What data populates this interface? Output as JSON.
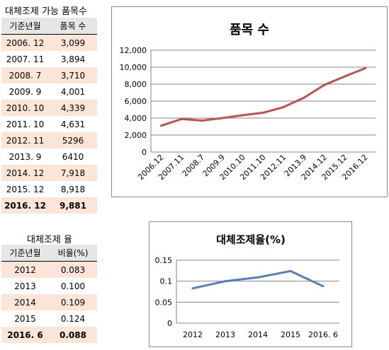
{
  "table1": {
    "title": "대체조제 가능 품목수",
    "headers": [
      "기준년월",
      "품목 수"
    ],
    "rows": [
      [
        "2006. 12",
        "3,099"
      ],
      [
        "2007. 11",
        "3,894"
      ],
      [
        "2008. 7",
        "3,710"
      ],
      [
        "2009. 9",
        "4,001"
      ],
      [
        "2010. 10",
        "4,339"
      ],
      [
        "2011. 10",
        "4,631"
      ],
      [
        "2012. 11",
        "5296"
      ],
      [
        "2013. 9",
        "6410"
      ],
      [
        "2014. 12",
        "7,918"
      ],
      [
        "2015. 12",
        "8,918"
      ],
      [
        "2016. 12",
        "9,881"
      ]
    ]
  },
  "table2": {
    "title": "대체조제 율",
    "headers": [
      "기준년월",
      "비율(%)"
    ],
    "rows": [
      [
        "2012",
        "0.083"
      ],
      [
        "2013",
        "0.100"
      ],
      [
        "2014",
        "0.109"
      ],
      [
        "2015",
        "0.124"
      ],
      [
        "2016. 6",
        "0.088"
      ]
    ]
  },
  "chart_data": [
    {
      "type": "line",
      "title": "품목 수",
      "xlabel": "",
      "ylabel": "",
      "categories": [
        "2006.12",
        "2007.11",
        "2008.7",
        "2009.9",
        "2010.10",
        "2011.10",
        "2012.11",
        "2013.9",
        "2014.12",
        "2015.12",
        "2016.12"
      ],
      "values": [
        3099,
        3894,
        3710,
        4001,
        4339,
        4631,
        5296,
        6410,
        7918,
        8918,
        9881
      ],
      "ylim": [
        0,
        12000
      ],
      "yticks": [
        "0",
        "2,000",
        "4,000",
        "6,000",
        "8,000",
        "10,000",
        "12,000"
      ],
      "color": "#c0504d",
      "grid": true
    },
    {
      "type": "line",
      "title": "대체조제율(%)",
      "xlabel": "",
      "ylabel": "",
      "categories": [
        "2012",
        "2013",
        "2014",
        "2015",
        "2016. 6"
      ],
      "values": [
        0.083,
        0.1,
        0.109,
        0.124,
        0.088
      ],
      "ylim": [
        0,
        0.15
      ],
      "yticks": [
        "0",
        "0.05",
        "0.1",
        "0.15"
      ],
      "color": "#4f81bd",
      "grid": true
    }
  ]
}
